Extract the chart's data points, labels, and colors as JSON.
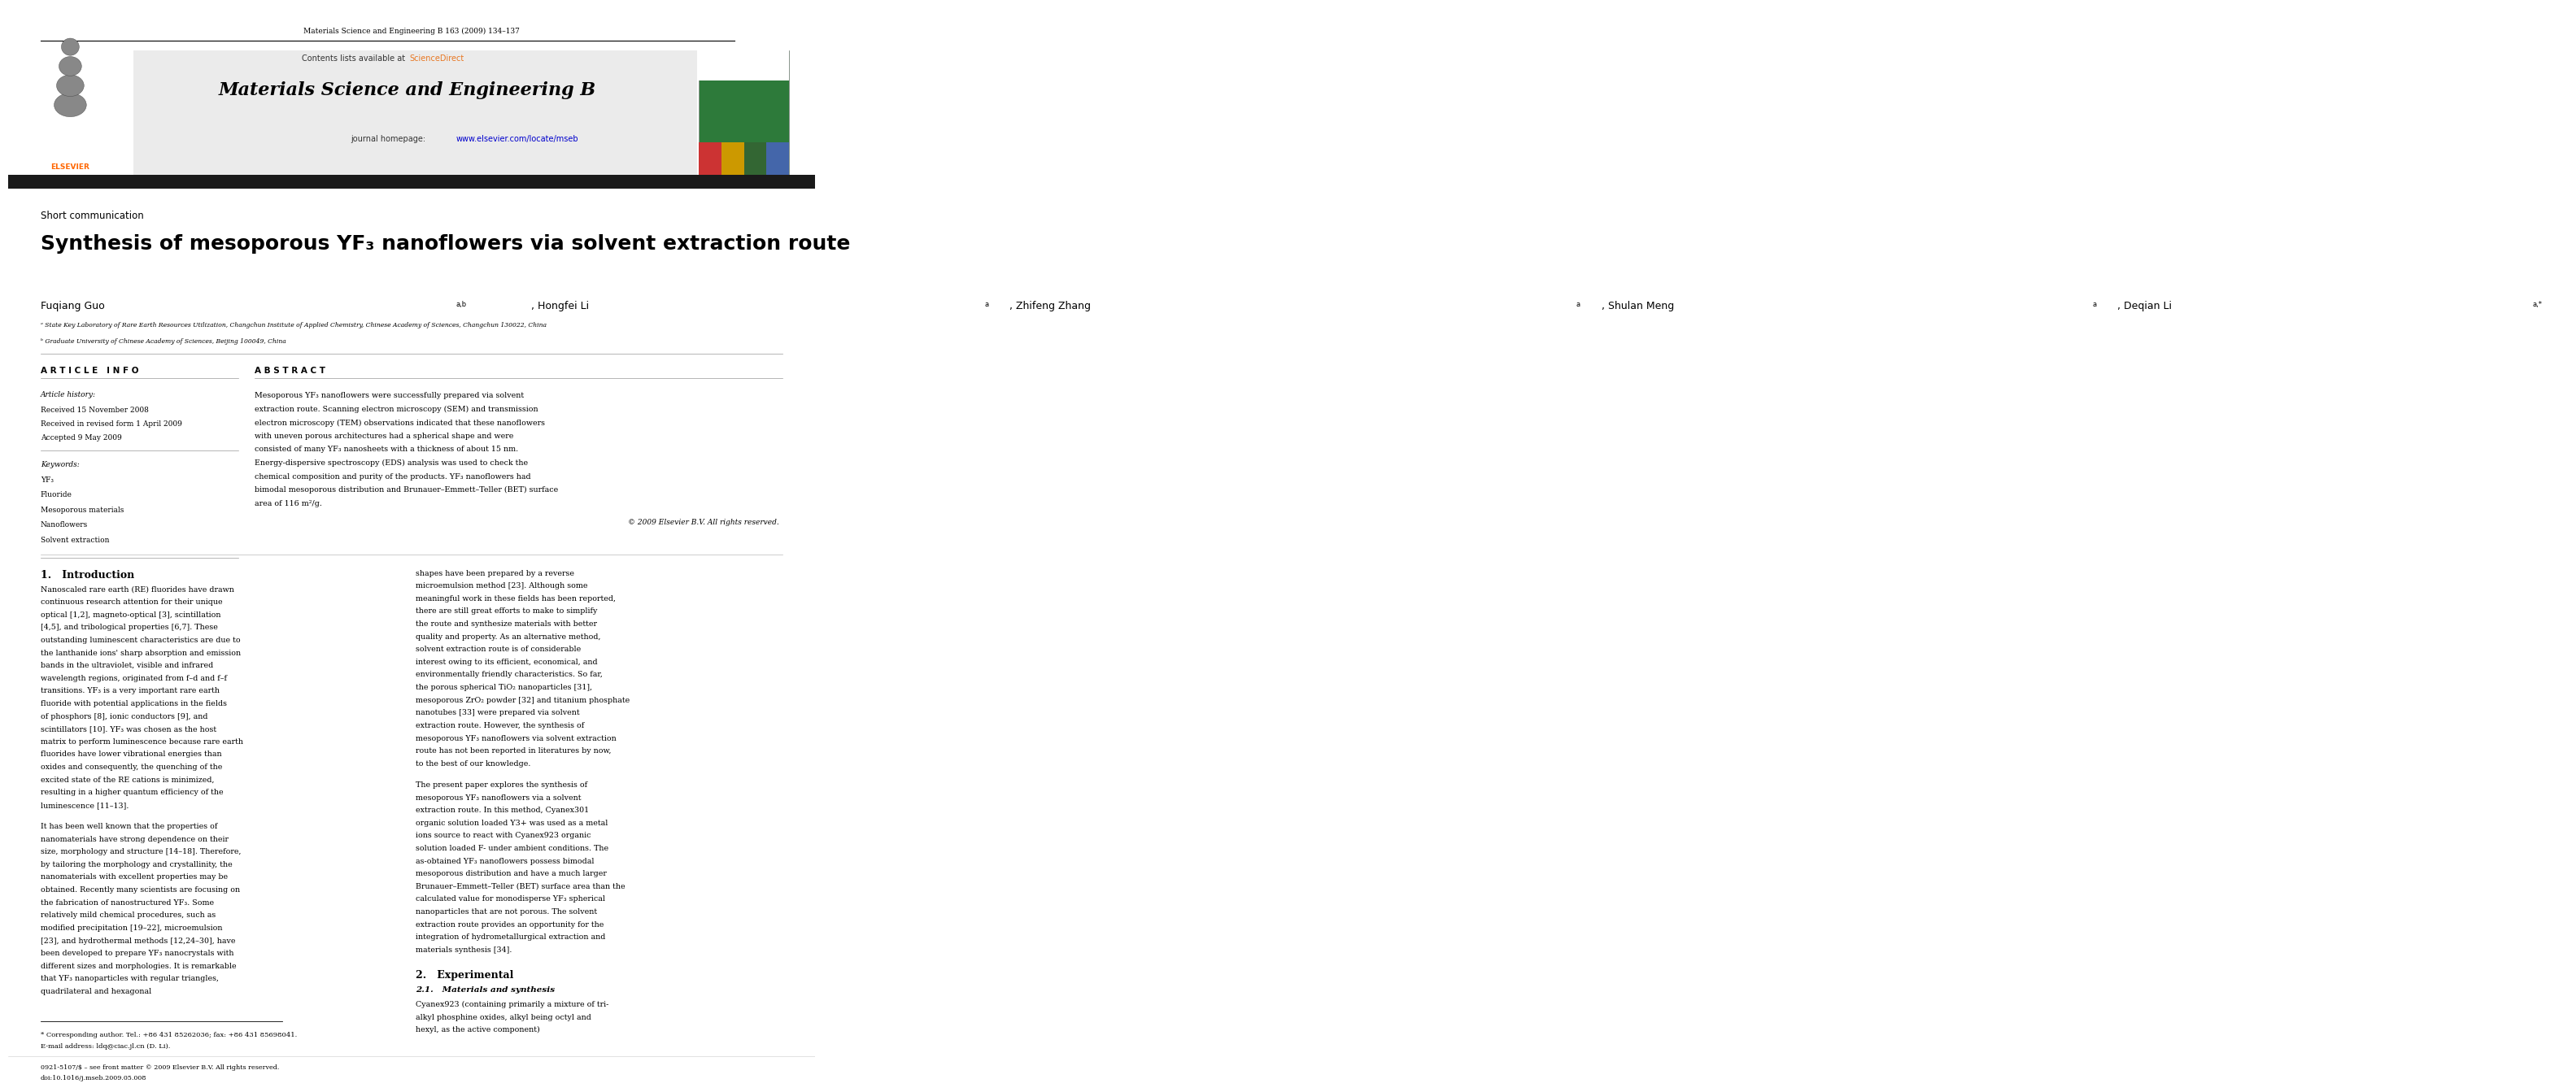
{
  "page_width": 9.92,
  "page_height": 13.23,
  "bg_color": "#ffffff",
  "journal_ref": "Materials Science and Engineering B 163 (2009) 134–137",
  "contents_line": "Contents lists available at ScienceDirect",
  "sciencedirect_color": "#e87722",
  "journal_name": "Materials Science and Engineering B",
  "journal_homepage": "journal homepage: www.elsevier.com/locate/mseb",
  "homepage_color": "#0000cc",
  "section_label": "Short communication",
  "paper_title": "Synthesis of mesoporous YF₃ nanoflowers via solvent extraction route",
  "affil_a": "a State Key Laboratory of Rare Earth Resources Utilization, Changchun Institute of Applied Chemistry, Chinese Academy of Sciences, Changchun 130022, China",
  "affil_b": "b Graduate University of Chinese Academy of Sciences, Beijing 100049, China",
  "article_info_header": "A R T I C L E   I N F O",
  "abstract_header": "A B S T R A C T",
  "article_history_label": "Article history:",
  "received1": "Received 15 November 2008",
  "received2": "Received in revised form 1 April 2009",
  "accepted": "Accepted 9 May 2009",
  "keywords_label": "Keywords:",
  "keywords": [
    "YF₃",
    "Fluoride",
    "Mesoporous materials",
    "Nanoflowers",
    "Solvent extraction"
  ],
  "abstract_text": "Mesoporous YF₃ nanoflowers were successfully prepared via solvent extraction route. Scanning electron microscopy (SEM) and transmission electron microscopy (TEM) observations indicated that these nanoflowers with uneven porous architectures had a spherical shape and were consisted of many YF₃ nanosheets with a thickness of about 15 nm. Energy-dispersive spectroscopy (EDS) analysis was used to check the chemical composition and purity of the products. YF₃ nanoflowers had bimodal mesoporous distribution and Brunauer–Emmett–Teller (BET) surface area of 116 m²/g.",
  "copyright": "© 2009 Elsevier B.V. All rights reserved.",
  "intro_header": "1.   Introduction",
  "intro_text1": "Nanoscaled rare earth (RE) fluorides have drawn continuous research attention for their unique optical [1,2], magneto-optical [3], scintillation [4,5], and tribological properties [6,7]. These outstanding luminescent characteristics are due to the lanthanide ions' sharp absorption and emission bands in the ultraviolet, visible and infrared wavelength regions, originated from f–d and f–f transitions. YF₃ is a very important rare earth fluoride with potential applications in the fields of phosphors [8], ionic conductors [9], and scintillators [10]. YF₃ was chosen as the host matrix to perform luminescence because rare earth fluorides have lower vibrational energies than oxides and consequently, the quenching of the excited state of the RE cations is minimized, resulting in a higher quantum efficiency of the luminescence [11–13].",
  "intro_text2": "It has been well known that the properties of nanomaterials have strong dependence on their size, morphology and structure [14–18]. Therefore, by tailoring the morphology and crystallinity, the nanomaterials with excellent properties may be obtained. Recently many scientists are focusing on the fabrication of nanostructured YF₃. Some relatively mild chemical procedures, such as modified precipitation [19–22], microemulsion [23], and hydrothermal methods [12,24–30], have been developed to prepare YF₃ nanocrystals with different sizes and morphologies. It is remarkable that YF₃ nanoparticles with regular triangles, quadrilateral and hexagonal",
  "right_col_text1": "shapes have been prepared by a reverse microemulsion method [23]. Although some meaningful work in these fields has been reported, there are still great efforts to make to simplify the route and synthesize materials with better quality and property. As an alternative method, solvent extraction route is of considerable interest owing to its efficient, economical, and environmentally friendly characteristics. So far, the porous spherical TiO₂ nanoparticles [31], mesoporous ZrO₂ powder [32] and titanium phosphate nanotubes [33] were prepared via solvent extraction route. However, the synthesis of mesoporous YF₃ nanoflowers via solvent extraction route has not been reported in literatures by now, to the best of our knowledge.",
  "right_col_text2": "The present paper explores the synthesis of mesoporous YF₃ nanoflowers via a solvent extraction route. In this method, Cyanex301 organic solution loaded Y3+ was used as a metal ions source to react with Cyanex923 organic solution loaded F- under ambient conditions. The as-obtained YF₃ nanoflowers possess bimodal mesoporous distribution and have a much larger Brunauer–Emmett–Teller (BET) surface area than the calculated value for monodisperse YF₃ spherical nanoparticles that are not porous. The solvent extraction route provides an opportunity for the integration of hydrometallurgical extraction and materials synthesis [34].",
  "exp_header": "2.   Experimental",
  "exp_sub_header": "2.1.   Materials and synthesis",
  "exp_text": "Cyanex923 (containing primarily a mixture of tri-alkyl phosphine oxides, alkyl being octyl and hexyl, as the active component)",
  "footnote_star": "* Corresponding author. Tel.: +86 431 85262036; fax: +86 431 85698041.",
  "footnote_email": "E-mail address: ldq@ciac.jl.cn (D. Li).",
  "footnote_issn": "0921-5107/$ – see front matter © 2009 Elsevier B.V. All rights reserved.",
  "footnote_doi": "doi:10.1016/j.mseb.2009.05.008",
  "header_bg": "#e8e8e8",
  "dark_bar_color": "#1a1a1a",
  "elsevier_orange": "#ff6600",
  "journal_cover_bg": "#2d7a3a"
}
